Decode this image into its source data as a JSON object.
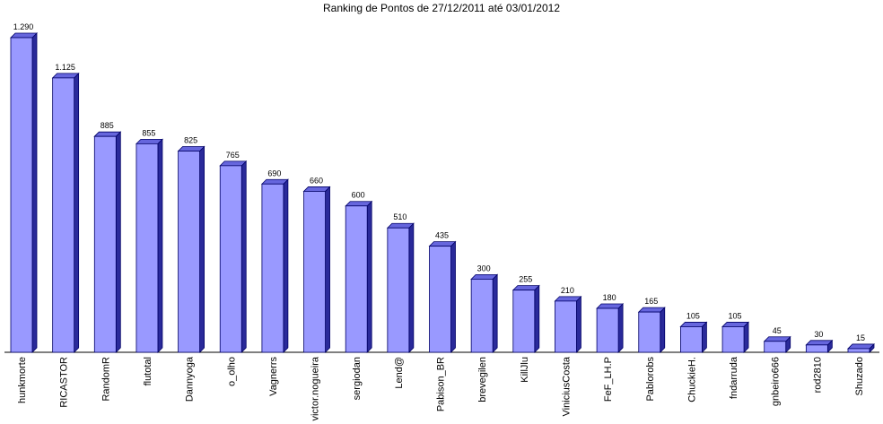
{
  "chart_data": {
    "type": "bar3d",
    "title": "Ranking de Pontos de 27/12/2011 até 03/01/2012",
    "categories": [
      "hunkmorte",
      "RICASTOR",
      "RandomR",
      "flutotal",
      "Dannyoga",
      "o_olho",
      "Vagnerrs",
      "victor.nogueira",
      "sergiodan",
      "Lend@",
      "Pabison_BR",
      "brevegilen",
      "KillJlu",
      "ViniciusCosta",
      "FeF_LH.P",
      "Pablorobs",
      "ChuckieH.",
      "fndarruda",
      "gnbeiro666",
      "rod2810",
      "Shuzado"
    ],
    "values": [
      1290,
      1125,
      885,
      855,
      825,
      765,
      690,
      660,
      600,
      510,
      435,
      300,
      255,
      210,
      180,
      165,
      105,
      105,
      45,
      30,
      15
    ],
    "value_labels": [
      "1.290",
      "1.125",
      "885",
      "855",
      "825",
      "765",
      "690",
      "660",
      "600",
      "510",
      "435",
      "300",
      "255",
      "210",
      "180",
      "165",
      "105",
      "105",
      "45",
      "30",
      "15"
    ],
    "color": "#9999ff"
  }
}
